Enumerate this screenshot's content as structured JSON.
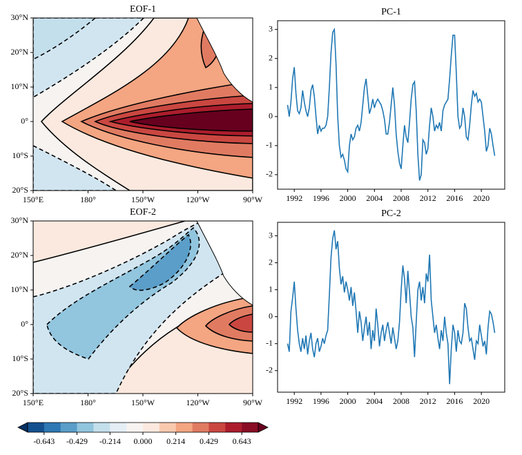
{
  "chart_data": [
    {
      "type": "map",
      "title": "EOF-1",
      "xlim": [
        150,
        270
      ],
      "ylim": [
        -20,
        30
      ],
      "xticks": [
        {
          "value": 150,
          "label": "150°E"
        },
        {
          "value": 180,
          "label": "180°"
        },
        {
          "value": 210,
          "label": "150°W"
        },
        {
          "value": 240,
          "label": "120°W"
        },
        {
          "value": 270,
          "label": "90°W"
        }
      ],
      "yticks": [
        {
          "value": -20,
          "label": "20°S"
        },
        {
          "value": -10,
          "label": "10°S"
        },
        {
          "value": 0,
          "label": "0°"
        },
        {
          "value": 10,
          "label": "10°N"
        },
        {
          "value": 20,
          "label": "20°N"
        },
        {
          "value": 30,
          "label": "30°N"
        }
      ]
    },
    {
      "type": "line",
      "title": "PC-1",
      "xlim": [
        1989.5,
        2023.5
      ],
      "ylim": [
        -2.5,
        3.3
      ],
      "xticks": [
        1992,
        1996,
        2000,
        2004,
        2008,
        2012,
        2016,
        2020
      ],
      "yticks": [
        -2,
        -1,
        0,
        1,
        2,
        3
      ],
      "x": [
        1991,
        1991.25,
        1991.5,
        1991.75,
        1992,
        1992.25,
        1992.5,
        1992.75,
        1993,
        1993.25,
        1993.5,
        1993.75,
        1994,
        1994.25,
        1994.5,
        1994.75,
        1995,
        1995.25,
        1995.5,
        1995.75,
        1996,
        1996.25,
        1996.5,
        1996.75,
        1997,
        1997.25,
        1997.5,
        1997.75,
        1998,
        1998.25,
        1998.5,
        1998.75,
        1999,
        1999.25,
        1999.5,
        1999.75,
        2000,
        2000.25,
        2000.5,
        2000.75,
        2001,
        2001.25,
        2001.5,
        2001.75,
        2002,
        2002.25,
        2002.5,
        2002.75,
        2003,
        2003.25,
        2003.5,
        2003.75,
        2004,
        2004.25,
        2004.5,
        2004.75,
        2005,
        2005.25,
        2005.5,
        2005.75,
        2006,
        2006.25,
        2006.5,
        2006.75,
        2007,
        2007.25,
        2007.5,
        2007.75,
        2008,
        2008.25,
        2008.5,
        2008.75,
        2009,
        2009.25,
        2009.5,
        2009.75,
        2010,
        2010.25,
        2010.5,
        2010.75,
        2011,
        2011.25,
        2011.5,
        2011.75,
        2012,
        2012.25,
        2012.5,
        2012.75,
        2013,
        2013.25,
        2013.5,
        2013.75,
        2014,
        2014.25,
        2014.5,
        2014.75,
        2015,
        2015.25,
        2015.5,
        2015.75,
        2016,
        2016.25,
        2016.5,
        2016.75,
        2017,
        2017.25,
        2017.5,
        2017.75,
        2018,
        2018.25,
        2018.5,
        2018.75,
        2019,
        2019.25,
        2019.5,
        2019.75,
        2020,
        2020.25,
        2020.5,
        2020.75,
        2021,
        2021.25,
        2021.5,
        2021.75,
        2022
      ],
      "series": [
        {
          "color": "#1f77b4",
          "values": [
            0.4,
            0,
            0.5,
            1.3,
            1.7,
            0.8,
            0.2,
            0.1,
            0.3,
            0.9,
            0.5,
            0.2,
            0,
            0.3,
            0.9,
            1.1,
            0.7,
            0,
            -0.6,
            -0.3,
            -0.5,
            -0.4,
            -0.4,
            -0.3,
            0,
            1,
            2.2,
            2.9,
            3,
            1.8,
            0,
            -1,
            -1.4,
            -1.3,
            -1.5,
            -1.8,
            -1.9,
            -1,
            -0.6,
            -0.8,
            -0.7,
            -0.4,
            -0.3,
            -0.5,
            -0.2,
            0.4,
            1,
            1.3,
            0.7,
            0.1,
            0.3,
            0.6,
            0.3,
            0.5,
            0.6,
            0.5,
            0.4,
            0.2,
            -0.1,
            -0.6,
            -0.6,
            -0.2,
            0.4,
            1,
            0.4,
            -0.6,
            -1.2,
            -1.6,
            -1.8,
            -1,
            -0.3,
            -0.7,
            -0.9,
            -0.2,
            0.6,
            1.1,
            1.2,
            0.2,
            -1.3,
            -2.2,
            -2,
            -0.8,
            -0.9,
            -1.3,
            -1.1,
            -0.3,
            0.3,
            0,
            -0.5,
            -0.3,
            -0.4,
            -0.2,
            -0.5,
            0.2,
            0.4,
            0.5,
            0.6,
            1.3,
            2.1,
            2.8,
            2.8,
            1.5,
            0,
            -0.4,
            -0.3,
            0.3,
            0,
            -0.7,
            -0.8,
            -0.3,
            0.4,
            0.9,
            0.7,
            0.8,
            0.5,
            0.6,
            0.5,
            0,
            -0.5,
            -1.2,
            -1,
            -0.4,
            -0.6,
            -1,
            -1.35
          ]
        }
      ]
    },
    {
      "type": "map",
      "title": "EOF-2",
      "xlim": [
        150,
        270
      ],
      "ylim": [
        -20,
        30
      ],
      "xticks": [
        {
          "value": 150,
          "label": "150°E"
        },
        {
          "value": 180,
          "label": "180°"
        },
        {
          "value": 210,
          "label": "150°W"
        },
        {
          "value": 240,
          "label": "120°W"
        },
        {
          "value": 270,
          "label": "90°W"
        }
      ],
      "yticks": [
        {
          "value": -20,
          "label": "20°S"
        },
        {
          "value": -10,
          "label": "10°S"
        },
        {
          "value": 0,
          "label": "0°"
        },
        {
          "value": 10,
          "label": "10°N"
        },
        {
          "value": 20,
          "label": "20°N"
        },
        {
          "value": 30,
          "label": "30°N"
        }
      ]
    },
    {
      "type": "line",
      "title": "PC-2",
      "xlim": [
        1989.5,
        2023.5
      ],
      "ylim": [
        -2.8,
        3.5
      ],
      "xticks": [
        1992,
        1996,
        2000,
        2004,
        2008,
        2012,
        2016,
        2020
      ],
      "yticks": [
        -2,
        -1,
        0,
        1,
        2,
        3
      ],
      "x": [
        1991,
        1991.25,
        1991.5,
        1991.75,
        1992,
        1992.25,
        1992.5,
        1992.75,
        1993,
        1993.25,
        1993.5,
        1993.75,
        1994,
        1994.25,
        1994.5,
        1994.75,
        1995,
        1995.25,
        1995.5,
        1995.75,
        1996,
        1996.25,
        1996.5,
        1996.75,
        1997,
        1997.25,
        1997.5,
        1997.75,
        1998,
        1998.25,
        1998.5,
        1998.75,
        1999,
        1999.25,
        1999.5,
        1999.75,
        2000,
        2000.25,
        2000.5,
        2000.75,
        2001,
        2001.25,
        2001.5,
        2001.75,
        2002,
        2002.25,
        2002.5,
        2002.75,
        2003,
        2003.25,
        2003.5,
        2003.75,
        2004,
        2004.25,
        2004.5,
        2004.75,
        2005,
        2005.25,
        2005.5,
        2005.75,
        2006,
        2006.25,
        2006.5,
        2006.75,
        2007,
        2007.25,
        2007.5,
        2007.75,
        2008,
        2008.25,
        2008.5,
        2008.75,
        2009,
        2009.25,
        2009.5,
        2009.75,
        2010,
        2010.25,
        2010.5,
        2010.75,
        2011,
        2011.25,
        2011.5,
        2011.75,
        2012,
        2012.25,
        2012.5,
        2012.75,
        2013,
        2013.25,
        2013.5,
        2013.75,
        2014,
        2014.25,
        2014.5,
        2014.75,
        2015,
        2015.25,
        2015.5,
        2015.75,
        2016,
        2016.25,
        2016.5,
        2016.75,
        2017,
        2017.25,
        2017.5,
        2017.75,
        2018,
        2018.25,
        2018.5,
        2018.75,
        2019,
        2019.25,
        2019.5,
        2019.75,
        2020,
        2020.25,
        2020.5,
        2020.75,
        2021,
        2021.25,
        2021.5,
        2021.75,
        2022
      ],
      "series": [
        {
          "color": "#1f77b4",
          "values": [
            -1,
            -1.3,
            0.2,
            0.7,
            1.3,
            0.3,
            -0.5,
            -1,
            -1.3,
            -0.8,
            -1.2,
            -0.7,
            -1.4,
            -0.9,
            -0.6,
            -1.2,
            -1.5,
            -1,
            -0.8,
            -1.3,
            -1.1,
            -0.8,
            -1,
            -0.7,
            -0.5,
            0.8,
            2.2,
            2.9,
            3.2,
            2.5,
            2.8,
            1.8,
            1.2,
            1.5,
            0.9,
            1.3,
            1,
            0.6,
            1.1,
            0.4,
            0.9,
            0.2,
            -0.6,
            0.2,
            -0.2,
            -0.9,
            -0.4,
            0,
            -0.7,
            -0.2,
            -1.2,
            -0.5,
            -0.9,
            0.3,
            -0.3,
            -1.1,
            -0.6,
            -0.3,
            -0.9,
            -0.5,
            -0.2,
            -0.6,
            -1,
            -0.4,
            -0.8,
            -1.2,
            -0.9,
            -0.2,
            1,
            1.9,
            1.4,
            0.5,
            1.7,
            0.9,
            0,
            -0.4,
            -1.5,
            -0.2,
            1,
            1.3,
            0.6,
            1.1,
            0.5,
            1.6,
            1.3,
            2.3,
            0.6,
            0,
            -0.6,
            -0.3,
            -0.8,
            -1.2,
            -0.5,
            -0.9,
            0,
            -0.6,
            -1,
            -2.5,
            -1.2,
            -0.3,
            -0.6,
            -1.3,
            -0.5,
            -0.9,
            -1,
            -0.6,
            0.5,
            0.3,
            -0.4,
            -0.9,
            -0.8,
            -1.2,
            -1.6,
            -0.9,
            -1,
            -0.3,
            -0.7,
            -1.1,
            -0.9,
            -1.4,
            -0.4,
            0.2,
            0.1,
            -0.2,
            -0.6
          ]
        }
      ]
    },
    {
      "type": "colorbar",
      "xlim": [
        -0.75,
        0.75
      ],
      "xticks": [
        -0.643,
        -0.429,
        -0.214,
        {
          "value": 0,
          "label": "0.000"
        },
        0.214,
        0.429,
        0.643
      ],
      "colors": [
        "#14508f",
        "#2e78b5",
        "#5a9ec9",
        "#92c5de",
        "#c4dfec",
        "#e4eef4",
        "#f6f3f1",
        "#fbe9df",
        "#f9c9ae",
        "#f4a582",
        "#e07b62",
        "#ca4741",
        "#ac1d2c",
        "#8a0c25"
      ],
      "under_color": "#053061",
      "over_color": "#67001f"
    }
  ]
}
